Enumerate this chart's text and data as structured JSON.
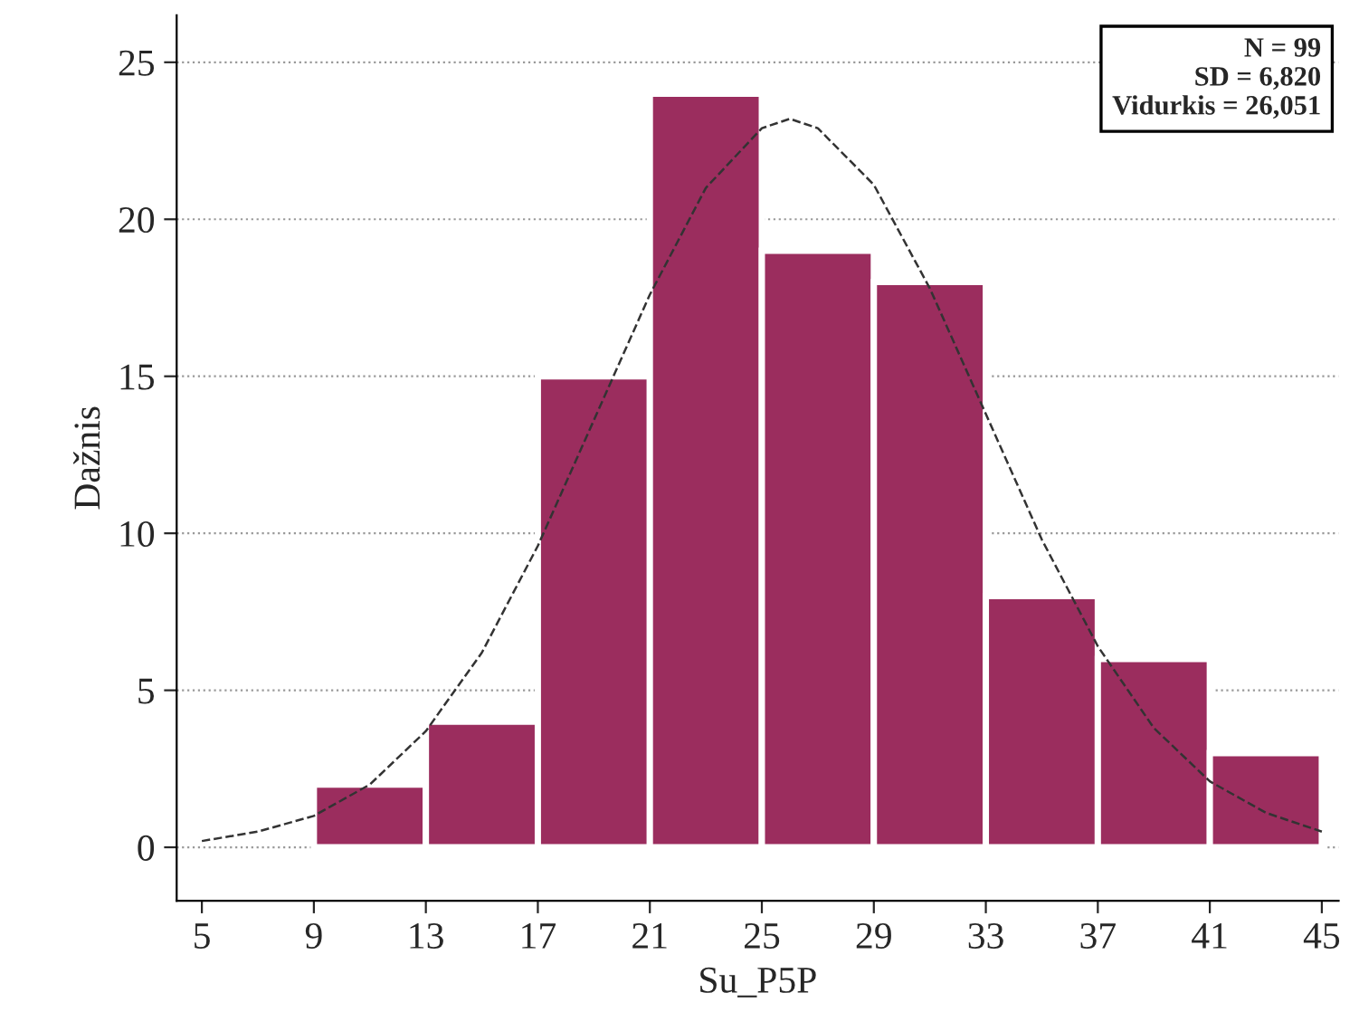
{
  "chart_data": {
    "type": "histogram",
    "xlabel": "Su_P5P",
    "ylabel": "Dažnis",
    "bins": [
      9,
      13,
      17,
      21,
      25,
      29,
      33,
      37,
      41,
      45
    ],
    "values": [
      2,
      4,
      15,
      24,
      19,
      18,
      8,
      6,
      3
    ],
    "color": "#9b2d5e",
    "series": [
      {
        "type": "line",
        "color": "#333333",
        "line_style": "dashed",
        "x": [
          5,
          7,
          9,
          11,
          13,
          15,
          17,
          19,
          21,
          23,
          25,
          26,
          27,
          29,
          31,
          33,
          35,
          37,
          39,
          41,
          43,
          45
        ],
        "values": [
          0.2,
          0.5,
          1.0,
          2.0,
          3.7,
          6.2,
          9.6,
          13.6,
          17.6,
          21.0,
          22.9,
          23.2,
          22.9,
          21.1,
          17.8,
          13.8,
          9.8,
          6.4,
          3.8,
          2.1,
          1.1,
          0.5
        ]
      }
    ],
    "xlim": [
      4.1,
      45.6
    ],
    "xticks": [
      5,
      9,
      13,
      17,
      21,
      25,
      29,
      33,
      37,
      41,
      45
    ],
    "ylim": [
      -1.7,
      26.5
    ],
    "yticks": [
      0,
      5,
      10,
      15,
      20,
      25
    ],
    "grid": "y",
    "legend": false,
    "annotations": [
      "N = 99\nSD = 6,820\nVidurkis = 26,051"
    ]
  }
}
